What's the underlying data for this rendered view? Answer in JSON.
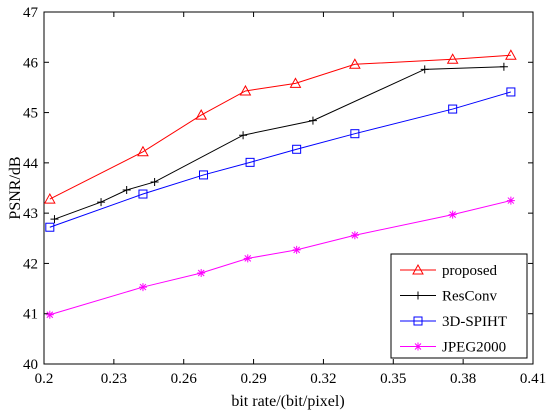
{
  "chart_data": {
    "type": "line",
    "xlabel": "bit rate/(bit/pixel)",
    "ylabel": "PSNR/dB",
    "xlim": [
      0.2,
      0.41
    ],
    "ylim": [
      40,
      47
    ],
    "xticks": [
      0.2,
      0.23,
      0.26,
      0.29,
      0.32,
      0.35,
      0.38,
      0.41
    ],
    "xtick_labels": [
      "0.2",
      "0.23",
      "0.26",
      "0.29",
      "0.32",
      "0.35",
      "0.38",
      "0.41"
    ],
    "yticks": [
      40,
      41,
      42,
      43,
      44,
      45,
      46,
      47
    ],
    "ytick_labels": [
      "40",
      "41",
      "42",
      "43",
      "44",
      "45",
      "46",
      "47"
    ],
    "grid": false,
    "legend_position": "bottom-right",
    "series": [
      {
        "name": "proposed",
        "color": "#ff0000",
        "marker": "triangle",
        "x": [
          0.2025,
          0.2425,
          0.2675,
          0.2865,
          0.308,
          0.3335,
          0.3755,
          0.4005
        ],
        "y": [
          43.28,
          44.22,
          44.95,
          45.43,
          45.58,
          45.96,
          46.06,
          46.14
        ]
      },
      {
        "name": "ResConv",
        "color": "#000000",
        "marker": "plus",
        "x": [
          0.2045,
          0.2245,
          0.2355,
          0.2475,
          0.2855,
          0.3155,
          0.3635,
          0.3975
        ],
        "y": [
          42.88,
          43.22,
          43.46,
          43.62,
          44.55,
          44.84,
          45.86,
          45.91
        ]
      },
      {
        "name": "3D-SPIHT",
        "color": "#0000ff",
        "marker": "square",
        "x": [
          0.2025,
          0.2425,
          0.2685,
          0.2885,
          0.3085,
          0.3335,
          0.3755,
          0.4005
        ],
        "y": [
          42.72,
          43.38,
          43.76,
          44.01,
          44.27,
          44.58,
          45.07,
          45.41
        ]
      },
      {
        "name": "JPEG2000",
        "color": "#ff00ff",
        "marker": "asterisk",
        "x": [
          0.2025,
          0.2425,
          0.2675,
          0.2875,
          0.3085,
          0.3335,
          0.3755,
          0.4005
        ],
        "y": [
          40.98,
          41.53,
          41.81,
          42.1,
          42.27,
          42.56,
          42.97,
          43.25
        ]
      }
    ]
  }
}
